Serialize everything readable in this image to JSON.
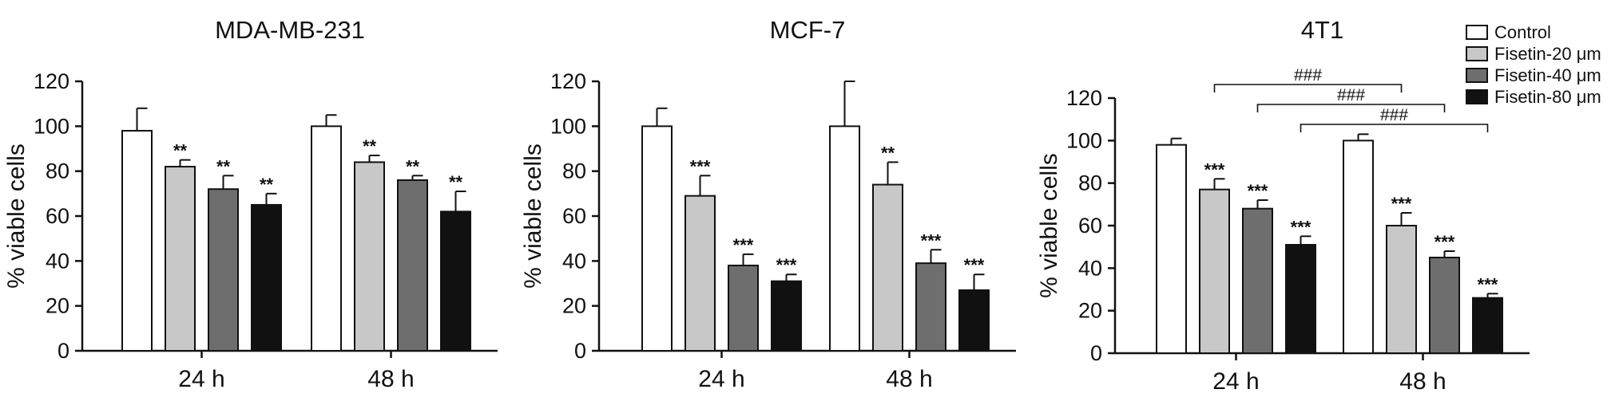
{
  "figure": {
    "legend_entries": [
      {
        "label": "Control",
        "color": "#ffffff"
      },
      {
        "label": "Fisetin-20 μm",
        "color": "#c8c8c8"
      },
      {
        "label": "Fisetin-40 μm",
        "color": "#6e6e6e"
      },
      {
        "label": "Fisetin-80 μm",
        "color": "#111111"
      }
    ],
    "legend_position": "top-right"
  },
  "chart_data": [
    {
      "type": "bar",
      "title": "MDA-MB-231",
      "ylabel": "% viable cells",
      "xlabel": "",
      "ylim": [
        0,
        120
      ],
      "yticks": [
        "0",
        "20",
        "40",
        "60",
        "80",
        "100",
        "120"
      ],
      "categories": [
        "24 h",
        "48 h"
      ],
      "series": [
        {
          "name": "Control",
          "values": [
            98,
            100
          ],
          "errors": [
            10,
            5
          ],
          "sig": [
            "",
            ""
          ]
        },
        {
          "name": "Fisetin-20 μm",
          "values": [
            82,
            84
          ],
          "errors": [
            3,
            3
          ],
          "sig": [
            "**",
            "**"
          ]
        },
        {
          "name": "Fisetin-40 μm",
          "values": [
            72,
            76
          ],
          "errors": [
            6,
            2
          ],
          "sig": [
            "**",
            "**"
          ]
        },
        {
          "name": "Fisetin-80 μm",
          "values": [
            65,
            62
          ],
          "errors": [
            5,
            9
          ],
          "sig": [
            "**",
            "**"
          ]
        }
      ],
      "brackets": []
    },
    {
      "type": "bar",
      "title": "MCF-7",
      "ylabel": "% viable cells",
      "xlabel": "",
      "ylim": [
        0,
        120
      ],
      "yticks": [
        "0",
        "20",
        "40",
        "60",
        "80",
        "100",
        "120"
      ],
      "categories": [
        "24 h",
        "48 h"
      ],
      "series": [
        {
          "name": "Control",
          "values": [
            100,
            100
          ],
          "errors": [
            8,
            20
          ],
          "sig": [
            "",
            ""
          ]
        },
        {
          "name": "Fisetin-20 μm",
          "values": [
            69,
            74
          ],
          "errors": [
            9,
            10
          ],
          "sig": [
            "***",
            "**"
          ]
        },
        {
          "name": "Fisetin-40 μm",
          "values": [
            38,
            39
          ],
          "errors": [
            5,
            6
          ],
          "sig": [
            "***",
            "***"
          ]
        },
        {
          "name": "Fisetin-80 μm",
          "values": [
            31,
            27
          ],
          "errors": [
            3,
            7
          ],
          "sig": [
            "***",
            "***"
          ]
        }
      ],
      "brackets": []
    },
    {
      "type": "bar",
      "title": "4T1",
      "ylabel": "% viable cells",
      "xlabel": "",
      "ylim": [
        0,
        120
      ],
      "yticks": [
        "0",
        "20",
        "40",
        "60",
        "80",
        "100",
        "120"
      ],
      "categories": [
        "24 h",
        "48 h"
      ],
      "series": [
        {
          "name": "Control",
          "values": [
            98,
            100
          ],
          "errors": [
            3,
            3
          ],
          "sig": [
            "",
            ""
          ]
        },
        {
          "name": "Fisetin-20 μm",
          "values": [
            77,
            60
          ],
          "errors": [
            5,
            6
          ],
          "sig": [
            "***",
            "***"
          ]
        },
        {
          "name": "Fisetin-40 μm",
          "values": [
            68,
            45
          ],
          "errors": [
            4,
            3
          ],
          "sig": [
            "***",
            "***"
          ]
        },
        {
          "name": "Fisetin-80 μm",
          "values": [
            51,
            26
          ],
          "errors": [
            4,
            2
          ],
          "sig": [
            "***",
            "***"
          ]
        }
      ],
      "brackets": [
        {
          "from": [
            1,
            0
          ],
          "to": [
            1,
            1
          ],
          "label": "###"
        },
        {
          "from": [
            2,
            0
          ],
          "to": [
            2,
            1
          ],
          "label": "###"
        },
        {
          "from": [
            3,
            0
          ],
          "to": [
            3,
            1
          ],
          "label": "###"
        }
      ]
    }
  ]
}
